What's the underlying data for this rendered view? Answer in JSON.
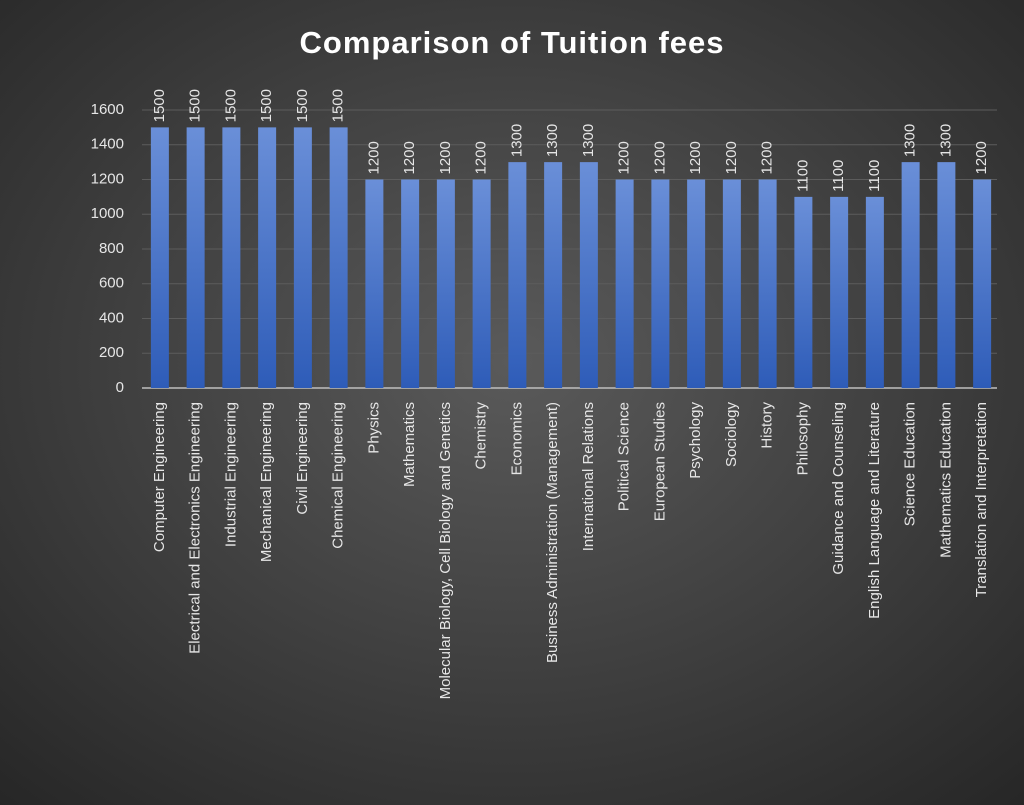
{
  "chart_data": {
    "type": "bar",
    "title": "Comparison of Tuition fees",
    "categories": [
      "Computer Engineering",
      "Electrical and Electronics Engineering",
      "Industrial Engineering",
      "Mechanical Engineering",
      "Civil Engineering",
      "Chemical Engineering",
      "Physics",
      "Mathematics",
      "Molecular Biology, Cell Biology and Genetics",
      "Chemistry",
      "Economics",
      "Business Administration (Management)",
      "International Relations",
      "Political Science",
      "European Studies",
      "Psychology",
      "Sociology",
      "History",
      "Philosophy",
      "Guidance and Counseling",
      "English Language and Literature",
      "Science Education",
      "Mathematics Education",
      "Translation and Interpretation"
    ],
    "values": [
      1500,
      1500,
      1500,
      1500,
      1500,
      1500,
      1200,
      1200,
      1200,
      1200,
      1300,
      1300,
      1300,
      1200,
      1200,
      1200,
      1200,
      1200,
      1100,
      1100,
      1100,
      1300,
      1300,
      1200
    ],
    "color": "#4472c4",
    "ylim": [
      0,
      1600
    ],
    "yticks": [
      0,
      200,
      400,
      600,
      800,
      1000,
      1200,
      1400,
      1600
    ],
    "grid": true
  }
}
